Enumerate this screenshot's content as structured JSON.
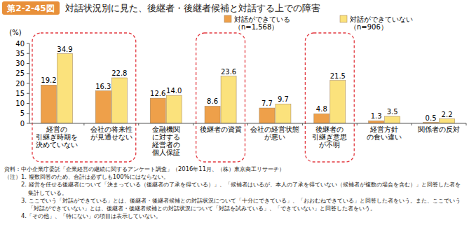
{
  "chart_data": {
    "type": "bar",
    "figure_label": "第2-2-45図",
    "title": "対話状況別に見た、後継者・後継者候補と対話する上での障害",
    "ylabel": "(%)",
    "categories": [
      "経営の\n引継ぎ時期を\n決めていない",
      "会社の将来性\nが見通せない",
      "金融機関\nに対する\n経営者の\n個人保証",
      "後継者の資質",
      "会社の経営状態\nが悪い",
      "後継者の\n引継ぎ意思\nが不明",
      "経営方針\nの食い違い",
      "関係者の反対"
    ],
    "series": [
      {
        "name": "対話ができている\n（n=1,568）",
        "color": "#eea04a",
        "values": [
          19.2,
          16.3,
          12.6,
          8.6,
          7.7,
          4.8,
          1.3,
          0.5
        ],
        "value_labels": [
          "19.2",
          "16.3",
          "12.6",
          "8.6",
          "7.7",
          "4.8",
          "1.3",
          "0.5"
        ]
      },
      {
        "name": "対話ができていない\n（n=906）",
        "color": "#fbe27c",
        "values": [
          34.9,
          22.8,
          14.0,
          23.6,
          9.7,
          21.5,
          3.5,
          2.2
        ],
        "value_labels": [
          "34.9",
          "22.8",
          "14.0",
          "23.6",
          "9.7",
          "21.5",
          "3.5",
          "2.2"
        ]
      }
    ],
    "ylim": [
      0,
      40
    ],
    "yticks": [
      0,
      5,
      10,
      15,
      20,
      25,
      30,
      35,
      40
    ],
    "grid": false,
    "data_labels": true,
    "legend": "top",
    "source": "資料：中小企業庁委託「企業経営の継続に関するアンケート調査」（2016年11月、（株）東京商工リサーチ）",
    "notes": [
      "（注）1. 複数回答のため、合計は必ずしも100%にはならない。",
      "2. 経営を任せる後継者について「決まっている（後継者の了承を得ている）」、「候補者はいるが、本人の了承を得ていない（候補者が複数の場合を含む）」と回答した者を集計している。",
      "3. ここでいう「対話ができている」とは、後継者・後継者候補との対話状況について「十分にできている」、「おおむねできている」と回答した者をいう。また、ここでいう「対話ができていない」とは、後継者・後継者候補との対話状況について「対話を試みている」、「できていない」と回答した者をいう。",
      "4.「その他」、「特にない」の項目は表示していない。"
    ]
  }
}
